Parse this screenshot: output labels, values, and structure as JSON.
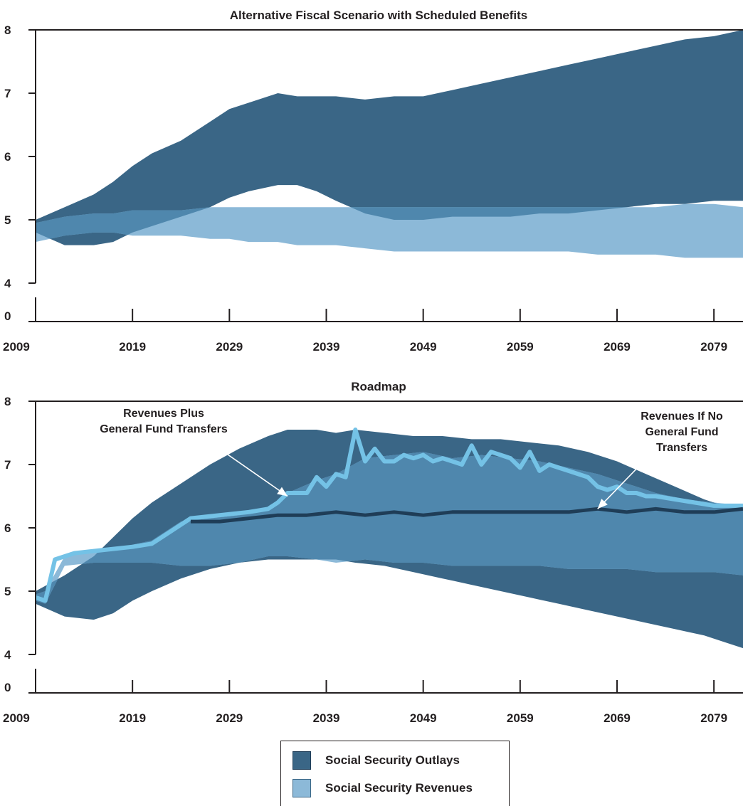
{
  "colors": {
    "outlays": "#3a6686",
    "revenues": "#8cb9d8",
    "overlap": "#4f87ad",
    "transfers_line": "#74c2e6",
    "no_transfers_line": "#1f3d57",
    "text": "#231f20"
  },
  "legend": {
    "outlays_label": "Social Security Outlays",
    "revenues_label": "Social Security Revenues"
  },
  "chart_data": [
    {
      "type": "area",
      "title": "Alternative Fiscal Scenario with Scheduled Benefits",
      "x_ticks": [
        "2009",
        "2019",
        "2029",
        "2039",
        "2049",
        "2059",
        "2069",
        "2079"
      ],
      "y_ticks": [
        "0",
        "4",
        "5",
        "6",
        "7",
        "8"
      ],
      "xlim": [
        2009,
        2082
      ],
      "ylim": [
        0,
        8
      ],
      "y_axis_break": [
        0,
        4
      ],
      "grid": false,
      "series": [
        {
          "name": "Social Security Outlays",
          "x": [
            2009,
            2012,
            2015,
            2017,
            2019,
            2021,
            2024,
            2027,
            2029,
            2031,
            2034,
            2036,
            2038,
            2040,
            2043,
            2046,
            2049,
            2052,
            2055,
            2058,
            2061,
            2064,
            2067,
            2070,
            2073,
            2076,
            2079,
            2082
          ],
          "lower": [
            4.8,
            4.6,
            4.6,
            4.65,
            4.8,
            4.9,
            5.05,
            5.2,
            5.35,
            5.45,
            5.55,
            5.55,
            5.45,
            5.3,
            5.1,
            5.0,
            5.0,
            5.05,
            5.05,
            5.05,
            5.1,
            5.1,
            5.15,
            5.2,
            5.25,
            5.25,
            5.3,
            5.3
          ],
          "upper": [
            5.0,
            5.2,
            5.4,
            5.6,
            5.85,
            6.05,
            6.25,
            6.55,
            6.75,
            6.85,
            7.0,
            6.95,
            6.95,
            6.95,
            6.9,
            6.95,
            6.95,
            7.05,
            7.15,
            7.25,
            7.35,
            7.45,
            7.55,
            7.65,
            7.75,
            7.85,
            7.9,
            8.0
          ]
        },
        {
          "name": "Social Security Revenues",
          "x": [
            2009,
            2012,
            2015,
            2017,
            2019,
            2021,
            2024,
            2027,
            2029,
            2031,
            2034,
            2036,
            2038,
            2040,
            2043,
            2046,
            2049,
            2052,
            2055,
            2058,
            2061,
            2064,
            2067,
            2070,
            2073,
            2076,
            2079,
            2082
          ],
          "lower": [
            4.65,
            4.75,
            4.8,
            4.8,
            4.75,
            4.75,
            4.75,
            4.7,
            4.7,
            4.65,
            4.65,
            4.6,
            4.6,
            4.6,
            4.55,
            4.5,
            4.5,
            4.5,
            4.5,
            4.5,
            4.5,
            4.5,
            4.45,
            4.45,
            4.45,
            4.4,
            4.4,
            4.4
          ],
          "upper": [
            4.95,
            5.05,
            5.1,
            5.1,
            5.15,
            5.15,
            5.15,
            5.2,
            5.2,
            5.2,
            5.2,
            5.2,
            5.2,
            5.2,
            5.2,
            5.2,
            5.2,
            5.2,
            5.2,
            5.2,
            5.2,
            5.2,
            5.2,
            5.2,
            5.2,
            5.25,
            5.25,
            5.2
          ]
        }
      ]
    },
    {
      "type": "area",
      "title": "Roadmap",
      "x_ticks": [
        "2009",
        "2019",
        "2029",
        "2039",
        "2049",
        "2059",
        "2069",
        "2079"
      ],
      "y_ticks": [
        "0",
        "4",
        "5",
        "6",
        "7",
        "8"
      ],
      "xlim": [
        2009,
        2082
      ],
      "ylim": [
        0,
        8
      ],
      "y_axis_break": [
        0,
        4
      ],
      "grid": false,
      "series": [
        {
          "name": "Social Security Outlays",
          "x": [
            2009,
            2012,
            2015,
            2017,
            2019,
            2021,
            2024,
            2027,
            2030,
            2033,
            2035,
            2038,
            2040,
            2042,
            2045,
            2048,
            2051,
            2054,
            2057,
            2060,
            2063,
            2066,
            2069,
            2072,
            2075,
            2078,
            2080,
            2082
          ],
          "lower": [
            4.8,
            4.6,
            4.55,
            4.65,
            4.85,
            5.0,
            5.2,
            5.35,
            5.45,
            5.5,
            5.5,
            5.5,
            5.5,
            5.45,
            5.4,
            5.3,
            5.2,
            5.1,
            5.0,
            4.9,
            4.8,
            4.7,
            4.6,
            4.5,
            4.4,
            4.3,
            4.2,
            4.1
          ],
          "upper": [
            5.0,
            5.25,
            5.55,
            5.85,
            6.15,
            6.4,
            6.7,
            7.0,
            7.25,
            7.45,
            7.55,
            7.55,
            7.5,
            7.55,
            7.5,
            7.45,
            7.45,
            7.4,
            7.4,
            7.35,
            7.3,
            7.2,
            7.05,
            6.85,
            6.65,
            6.45,
            6.35,
            6.3
          ]
        },
        {
          "name": "Social Security Revenues",
          "x": [
            2009,
            2010,
            2012,
            2015,
            2018,
            2021,
            2024,
            2027,
            2030,
            2033,
            2035,
            2038,
            2040,
            2043,
            2046,
            2049,
            2052,
            2055,
            2058,
            2061,
            2064,
            2067,
            2070,
            2073,
            2076,
            2079,
            2082
          ],
          "lower": [
            4.85,
            4.8,
            5.4,
            5.45,
            5.45,
            5.45,
            5.4,
            5.4,
            5.45,
            5.55,
            5.55,
            5.5,
            5.45,
            5.5,
            5.45,
            5.45,
            5.4,
            5.4,
            5.4,
            5.4,
            5.35,
            5.35,
            5.35,
            5.3,
            5.3,
            5.3,
            5.25
          ],
          "upper": [
            4.95,
            5.0,
            5.55,
            5.65,
            5.7,
            5.8,
            6.1,
            6.15,
            6.2,
            6.3,
            6.55,
            6.75,
            6.85,
            7.1,
            7.15,
            7.2,
            7.1,
            7.15,
            7.1,
            7.05,
            6.95,
            6.85,
            6.7,
            6.55,
            6.45,
            6.4,
            6.35
          ]
        },
        {
          "name": "Revenues Plus General Fund Transfers",
          "x": [
            2009,
            2010,
            2011,
            2013,
            2016,
            2019,
            2021,
            2023,
            2025,
            2028,
            2031,
            2033,
            2034,
            2035,
            2036,
            2037,
            2038,
            2039,
            2040,
            2041,
            2042,
            2043,
            2044,
            2045,
            2046,
            2047,
            2048,
            2049,
            2050,
            2051,
            2052,
            2053,
            2054,
            2055,
            2056,
            2057,
            2058,
            2059,
            2060,
            2061,
            2062,
            2063,
            2064,
            2065,
            2066,
            2067,
            2068,
            2069,
            2070,
            2071,
            2072,
            2073,
            2075,
            2077,
            2079,
            2082
          ],
          "values": [
            4.9,
            4.85,
            5.5,
            5.6,
            5.65,
            5.7,
            5.75,
            5.95,
            6.15,
            6.2,
            6.25,
            6.3,
            6.4,
            6.55,
            6.55,
            6.55,
            6.8,
            6.65,
            6.85,
            6.8,
            7.55,
            7.05,
            7.25,
            7.05,
            7.05,
            7.15,
            7.1,
            7.15,
            7.05,
            7.1,
            7.05,
            7.0,
            7.3,
            7.0,
            7.2,
            7.15,
            7.1,
            6.95,
            7.2,
            6.9,
            7.0,
            6.95,
            6.9,
            6.85,
            6.8,
            6.65,
            6.6,
            6.65,
            6.55,
            6.55,
            6.5,
            6.5,
            6.45,
            6.4,
            6.35,
            6.35
          ]
        },
        {
          "name": "Revenues If No General Fund Transfers",
          "x": [
            2025,
            2028,
            2031,
            2034,
            2037,
            2040,
            2043,
            2046,
            2049,
            2052,
            2055,
            2058,
            2061,
            2064,
            2067,
            2070,
            2073,
            2076,
            2079,
            2082
          ],
          "values": [
            6.1,
            6.1,
            6.15,
            6.2,
            6.2,
            6.25,
            6.2,
            6.25,
            6.2,
            6.25,
            6.25,
            6.25,
            6.25,
            6.25,
            6.3,
            6.25,
            6.3,
            6.25,
            6.25,
            6.3
          ]
        }
      ],
      "annotations": [
        {
          "text": [
            "Revenues Plus",
            "General Fund Transfers"
          ],
          "arrow_to": [
            2035,
            6.5
          ]
        },
        {
          "text": [
            "Revenues If No",
            "General Fund",
            "Transfers"
          ],
          "arrow_to": [
            2067,
            6.3
          ]
        }
      ]
    }
  ]
}
